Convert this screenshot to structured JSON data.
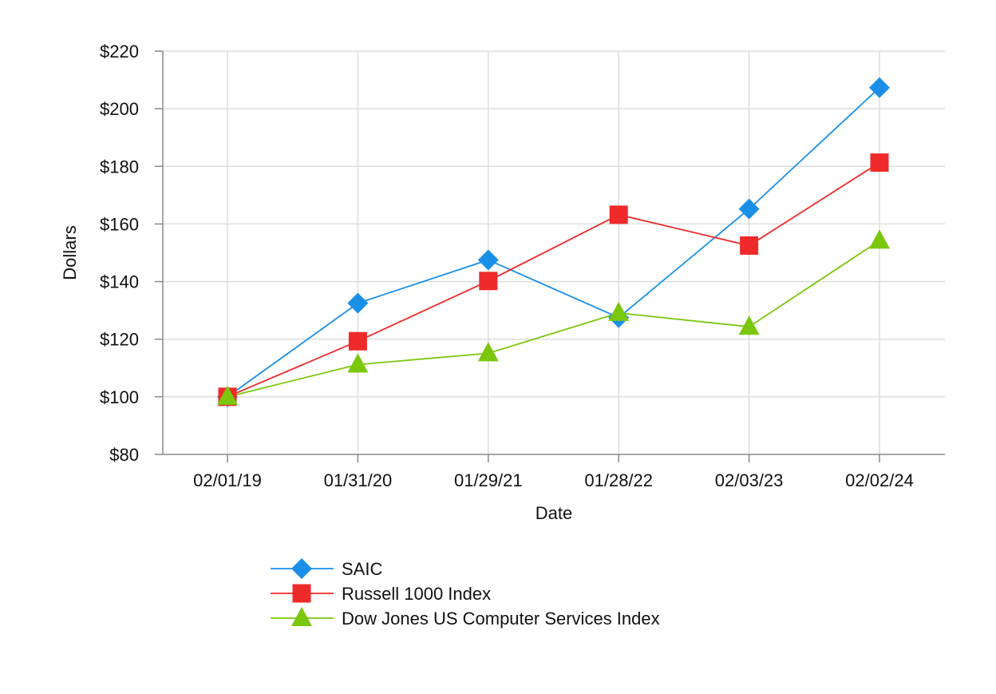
{
  "chart_data": {
    "type": "line",
    "title": "",
    "xlabel": "Date",
    "ylabel": "Dollars",
    "categories": [
      "02/01/19",
      "01/31/20",
      "01/29/21",
      "01/28/22",
      "02/03/23",
      "02/02/24"
    ],
    "ylim": [
      80,
      220
    ],
    "yticks": [
      80,
      100,
      120,
      140,
      160,
      180,
      200,
      220
    ],
    "ytick_labels": [
      "$80",
      "$100",
      "$120",
      "$140",
      "$160",
      "$180",
      "$200",
      "$220"
    ],
    "grid": true,
    "legend_position": "bottom",
    "series": [
      {
        "name": "SAIC",
        "marker": "diamond",
        "color": "#1a8fe8",
        "values": [
          100,
          132.5,
          147.5,
          127.5,
          165.2,
          207.3
        ]
      },
      {
        "name": "Russell 1000 Index",
        "marker": "square",
        "color": "#ee2a2a",
        "values": [
          100,
          119.3,
          140.2,
          163.2,
          152.5,
          181.3
        ]
      },
      {
        "name": "Dow Jones US Computer Services Index",
        "marker": "triangle",
        "color": "#7ac70c",
        "values": [
          100,
          111.2,
          115.1,
          129.1,
          124.3,
          154.2
        ]
      }
    ]
  }
}
